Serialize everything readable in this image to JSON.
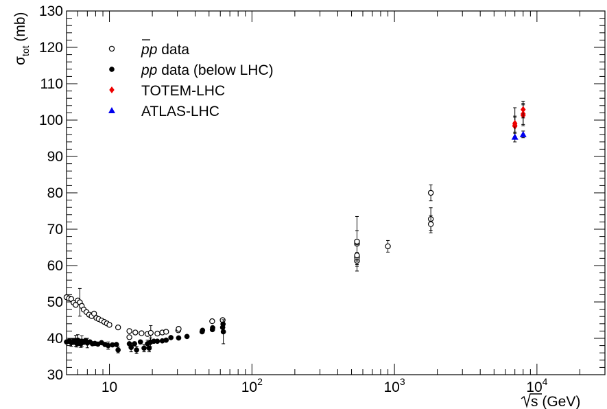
{
  "chart_data": {
    "type": "scatter",
    "xscale": "log",
    "xlim": [
      5,
      30000
    ],
    "ylim": [
      30,
      130
    ],
    "xlabel": "√s (GeV)",
    "ylabel": "σ_tot (mb)",
    "ylabel_main": "σ",
    "ylabel_sub": "tot",
    "ylabel_unit": " (mb)",
    "xlabel_radicand": "s",
    "xlabel_unit": " (GeV)",
    "x_tick_labels": [
      {
        "value": 10,
        "base": "10",
        "exp": ""
      },
      {
        "value": 100,
        "base": "10",
        "exp": "2"
      },
      {
        "value": 1000,
        "base": "10",
        "exp": "3"
      },
      {
        "value": 10000,
        "base": "10",
        "exp": "4"
      }
    ],
    "y_ticks": [
      30,
      40,
      50,
      60,
      70,
      80,
      90,
      100,
      110,
      120,
      130
    ],
    "grid": false,
    "legend_position": "top-left",
    "series": [
      {
        "name": "p̄p data",
        "legend_main": "p",
        "legend_rest": "p data",
        "marker": "open-circle",
        "color": "#000000",
        "points": [
          [
            5.0,
            51.3,
            0.5
          ],
          [
            5.2,
            51.0,
            0.5
          ],
          [
            5.4,
            50.8,
            0.5
          ],
          [
            5.6,
            49.8,
            0.5
          ],
          [
            5.8,
            49.2,
            0.6
          ],
          [
            6.0,
            50.4,
            0.6
          ],
          [
            6.2,
            49.9,
            3.8
          ],
          [
            6.4,
            48.9,
            0.6
          ],
          [
            6.6,
            47.9,
            0.5
          ],
          [
            6.9,
            47.2,
            0.5
          ],
          [
            7.2,
            46.5,
            0.5
          ],
          [
            7.5,
            46.1,
            0.5
          ],
          [
            7.8,
            46.8,
            0.5
          ],
          [
            8.1,
            45.6,
            0.5
          ],
          [
            8.4,
            45.3,
            0.5
          ],
          [
            8.8,
            44.9,
            0.5
          ],
          [
            9.2,
            44.5,
            0.5
          ],
          [
            9.6,
            44.1,
            0.5
          ],
          [
            10.0,
            43.7,
            0.5
          ],
          [
            11.5,
            43.0,
            0.4
          ],
          [
            13.8,
            42.0,
            0.4
          ],
          [
            13.8,
            40.3,
            0.4
          ],
          [
            15.2,
            41.6,
            0.4
          ],
          [
            16.8,
            41.4,
            0.4
          ],
          [
            18.5,
            41.2,
            0.4
          ],
          [
            19.5,
            41.5,
            2.0
          ],
          [
            21.7,
            41.3,
            0.4
          ],
          [
            23.5,
            41.6,
            0.3
          ],
          [
            25.0,
            41.8,
            0.3
          ],
          [
            30.4,
            42.2,
            0.3
          ],
          [
            30.6,
            42.6,
            0.3
          ],
          [
            52.6,
            44.7,
            0.3
          ],
          [
            62.3,
            45.0,
            0.4
          ],
          [
            546,
            61.3,
            1.0
          ],
          [
            546,
            62.3,
            1.0
          ],
          [
            546,
            66.0,
            7.5
          ],
          [
            546,
            66.6,
            3.0
          ],
          [
            546,
            62.8,
            3.0
          ],
          [
            900,
            65.3,
            1.6
          ],
          [
            1800,
            72.8,
            3.1
          ],
          [
            1800,
            71.4,
            2.4
          ],
          [
            1800,
            80.0,
            2.2
          ]
        ]
      },
      {
        "name": "pp data (below LHC)",
        "legend_main": "pp",
        "legend_rest": " data (below LHC)",
        "marker": "filled-circle",
        "color": "#000000",
        "points": [
          [
            5.0,
            39.0,
            0.3
          ],
          [
            5.2,
            39.2,
            0.3
          ],
          [
            5.4,
            38.8,
            1.0
          ],
          [
            5.6,
            39.1,
            0.8
          ],
          [
            5.8,
            39.3,
            1.5
          ],
          [
            5.9,
            38.6,
            1.0
          ],
          [
            6.0,
            39.5,
            1.5
          ],
          [
            6.1,
            39.0,
            0.8
          ],
          [
            6.3,
            38.5,
            1.0
          ],
          [
            6.4,
            39.2,
            1.5
          ],
          [
            6.6,
            38.9,
            0.5
          ],
          [
            6.8,
            39.4,
            0.6
          ],
          [
            7.0,
            38.7,
            1.3
          ],
          [
            7.3,
            39.0,
            0.5
          ],
          [
            7.6,
            38.5,
            0.4
          ],
          [
            7.9,
            38.6,
            0.4
          ],
          [
            8.3,
            38.4,
            0.4
          ],
          [
            8.8,
            38.8,
            0.4
          ],
          [
            9.3,
            38.3,
            0.4
          ],
          [
            9.8,
            38.0,
            1.0
          ],
          [
            10.5,
            38.2,
            0.4
          ],
          [
            11.2,
            38.3,
            0.4
          ],
          [
            11.5,
            36.8,
            0.8
          ],
          [
            13.8,
            38.5,
            0.4
          ],
          [
            14.2,
            37.5,
            1.2
          ],
          [
            15.0,
            38.5,
            0.5
          ],
          [
            15.5,
            36.8,
            1.0
          ],
          [
            16.5,
            39.0,
            0.5
          ],
          [
            17.5,
            37.3,
            1.0
          ],
          [
            18.5,
            38.5,
            1.0
          ],
          [
            19.0,
            37.3,
            1.0
          ],
          [
            19.4,
            38.9,
            1.2
          ],
          [
            20.5,
            39.2,
            0.4
          ],
          [
            21.7,
            39.2,
            0.4
          ],
          [
            23.5,
            39.3,
            0.3
          ],
          [
            25.0,
            39.5,
            0.3
          ],
          [
            27.0,
            40.2,
            0.3
          ],
          [
            30.6,
            40.1,
            0.3
          ],
          [
            35.0,
            40.5,
            0.4
          ],
          [
            44.7,
            41.8,
            0.4
          ],
          [
            45.0,
            42.2,
            0.4
          ],
          [
            52.8,
            42.4,
            0.3
          ],
          [
            53.0,
            42.9,
            0.3
          ],
          [
            62.3,
            43.0,
            0.4
          ],
          [
            62.7,
            43.9,
            0.4
          ],
          [
            63.0,
            41.8,
            3.3
          ]
        ]
      },
      {
        "name": "TOTEM-LHC",
        "legend_main": "TOTEM-LHC",
        "legend_rest": "",
        "marker": "filled-diamond",
        "color": "#ee0000",
        "points": [
          [
            7000,
            98.3,
            2.8
          ],
          [
            7000,
            98.6,
            2.2
          ],
          [
            7000,
            99.1,
            4.3
          ],
          [
            8000,
            101.3,
            2.9
          ],
          [
            8000,
            101.7,
            2.9
          ],
          [
            8000,
            102.9,
            2.3
          ]
        ]
      },
      {
        "name": "ATLAS-LHC",
        "legend_main": "ATLAS-LHC",
        "legend_rest": "",
        "marker": "filled-triangle",
        "color": "#0000ee",
        "points": [
          [
            7000,
            95.35,
            1.36
          ],
          [
            8000,
            96.07,
            0.92
          ]
        ]
      }
    ]
  }
}
